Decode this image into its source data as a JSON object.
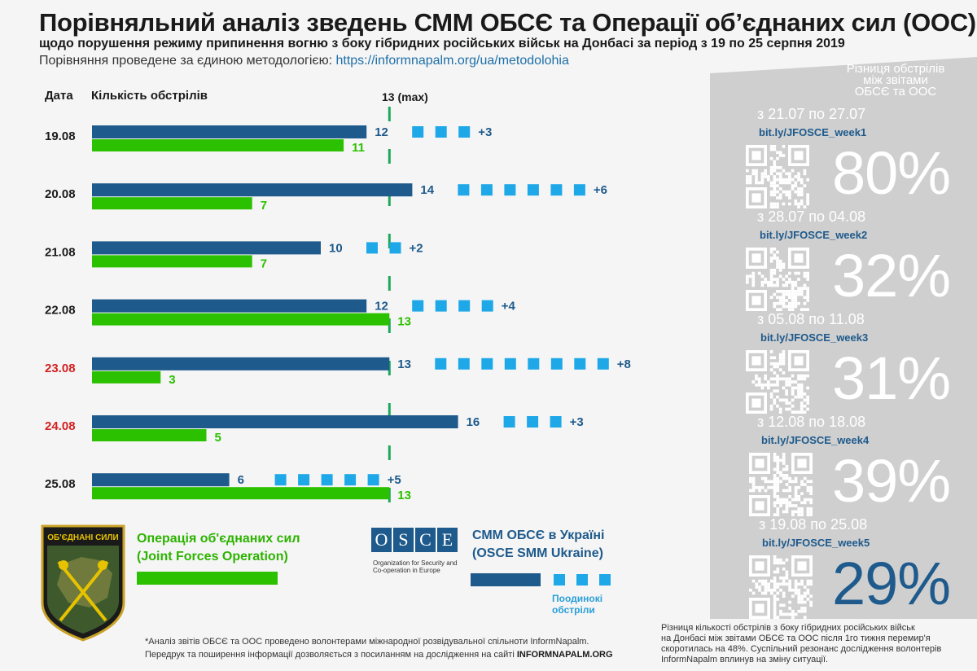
{
  "header": {
    "title": "Порівняльний аналіз зведень СММ ОБСЄ та Операції об’єднаних сил (ООС)",
    "subtitle": "щодо порушення режиму припинення вогню з боку гібридних російських військ на Донбасі за період з 19 по 25 серпня 2019",
    "method_text": "Порівняння проведене за єдиною методологією: ",
    "method_link": "https://informnapalm.org/ua/metodolohia"
  },
  "chart_data": {
    "type": "bar",
    "orientation": "horizontal",
    "col_date_label": "Дата",
    "col_count_label": "Кількість обстрілів",
    "max_label": "13 (max)",
    "max_value": 13,
    "categories": [
      "19.08",
      "20.08",
      "21.08",
      "22.08",
      "23.08",
      "24.08",
      "25.08"
    ],
    "highlighted_dates": [
      "23.08",
      "24.08"
    ],
    "series": [
      {
        "name": "СММ ОБСЄ в Україні",
        "values": [
          12,
          14,
          10,
          12,
          13,
          16,
          6
        ]
      },
      {
        "name": "Операція об'єднаних сил",
        "values": [
          11,
          7,
          7,
          13,
          3,
          5,
          13
        ]
      }
    ],
    "difference": [
      3,
      6,
      2,
      4,
      8,
      3,
      5
    ],
    "difference_labels": [
      "+3",
      "+6",
      "+2",
      "+4",
      "+8",
      "+3",
      "+5"
    ]
  },
  "colors": {
    "osce": "#1e5a8c",
    "jfo": "#2cc100",
    "single": "#1fa8e8",
    "highlight": "#d42020",
    "jfo_text": "#2cb300"
  },
  "panel": {
    "title_line1": "Різниця обстрілів",
    "title_line2": "між звітами",
    "title_line3": "ОБСЄ та ООС",
    "weeks": [
      {
        "period": "з 21.07 по 27.07",
        "link": "bit.ly/JFOSCE_week1",
        "percent": "80%"
      },
      {
        "period": "з 28.07 по 04.08",
        "link": "bit.ly/JFOSCE_week2",
        "percent": "32%"
      },
      {
        "period": "з 05.08 по 11.08",
        "link": "bit.ly/JFOSCE_week3",
        "percent": "31%"
      },
      {
        "period": "з 12.08 по 18.08",
        "link": "bit.ly/JFOSCE_week4",
        "percent": "39%"
      },
      {
        "period": "з 19.08 по 25.08",
        "link": "bit.ly/JFOSCE_week5",
        "percent": "29%"
      }
    ]
  },
  "legend": {
    "emblem_text": "ОБ'ЄДНАНІ СИЛИ",
    "jfo_line1": "Операція об'єднаних сил",
    "jfo_line2": "(Joint Forces Operation)",
    "osce_logo": "OSCE",
    "osce_org1": "Organization for Security and",
    "osce_org2": "Co-operation in Europe",
    "smm_line1": "СММ ОБСЄ в Україні",
    "smm_line2": "(OSCE SMM Ukraine)",
    "single_line1": "Поодинокі",
    "single_line2": "обстріли"
  },
  "footer": {
    "note_line1": "*Аналіз звітів ОБСЄ та ООС проведено волонтерами міжнародної розвідувальної спільноти InformNapalm.",
    "note_line2": "Передрук та поширення інформації дозволяється з посиланням на дослідження на сайті ",
    "note_site": "INFORMNAPALM.ORG",
    "side_line1": "Різниця кількості обстрілів з боку гібридних російських військ",
    "side_line2": "на Донбасі між звітами ОБСЄ та ООС після 1го тижня перемир'я",
    "side_line3": "скоротилась на 48%. Суспільний резонанс дослідження волонтерів",
    "side_line4": "InformNapalm вплинув на зміну ситуації."
  }
}
